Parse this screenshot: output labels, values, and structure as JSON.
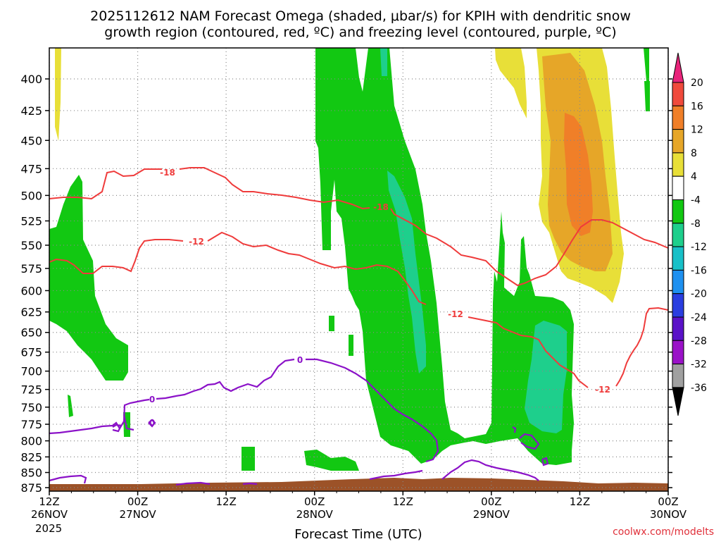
{
  "title_line1": "2025112612 NAM Forecast Omega (shaded, μbar/s) for KPIH with dendritic snow",
  "title_line2": "growth region (contoured, red, ºC) and freezing level (contoured, purple, ºC)",
  "xlabel": "Forecast Time (UTC)",
  "credit": "coolwx.com/modelts",
  "year_label": "2025",
  "colors": {
    "dgz_contour": "#ef3b3b",
    "freezing_contour": "#8b12c8",
    "ground": "#9c5228",
    "grid": "#888888"
  },
  "chart_data": {
    "type": "heatmap",
    "x_ticks": [
      {
        "hour": 12,
        "top": "12Z",
        "bottom": "26NOV"
      },
      {
        "hour": 24,
        "top": "00Z",
        "bottom": "27NOV"
      },
      {
        "hour": 36,
        "top": "12Z",
        "bottom": ""
      },
      {
        "hour": 48,
        "top": "00Z",
        "bottom": "28NOV"
      },
      {
        "hour": 60,
        "top": "12Z",
        "bottom": ""
      },
      {
        "hour": 72,
        "top": "00Z",
        "bottom": "29NOV"
      },
      {
        "hour": 84,
        "top": "12Z",
        "bottom": ""
      },
      {
        "hour": 96,
        "top": "00Z",
        "bottom": "30NOV"
      }
    ],
    "y_ticks": [
      400,
      425,
      450,
      475,
      500,
      525,
      550,
      575,
      600,
      625,
      650,
      675,
      700,
      725,
      750,
      775,
      800,
      825,
      850,
      875
    ],
    "colorbar": {
      "levels": [
        {
          "label": "20",
          "color": "#e8247a"
        },
        {
          "label": "16",
          "color": "#f04a3c"
        },
        {
          "label": "12",
          "color": "#f07f28"
        },
        {
          "label": "8",
          "color": "#e6a628"
        },
        {
          "label": "4",
          "color": "#e8df38"
        },
        {
          "label": "-4",
          "color": "#ffffff"
        },
        {
          "label": "-8",
          "color": "#12c812"
        },
        {
          "label": "-12",
          "color": "#1ecf8c"
        },
        {
          "label": "-16",
          "color": "#18c0c8"
        },
        {
          "label": "-20",
          "color": "#1e90f0"
        },
        {
          "label": "-24",
          "color": "#2a3ee0"
        },
        {
          "label": "-28",
          "color": "#5a12c8"
        },
        {
          "label": "-32",
          "color": "#9a12c8"
        },
        {
          "label": "-36",
          "color": "#a0a0a0"
        }
      ],
      "bottom_color": "#000000"
    },
    "contour_labels": {
      "dgz": [
        "-18",
        "-12",
        "-18",
        "-12",
        "-12"
      ],
      "freezing": [
        "0",
        "0",
        "0"
      ]
    }
  }
}
